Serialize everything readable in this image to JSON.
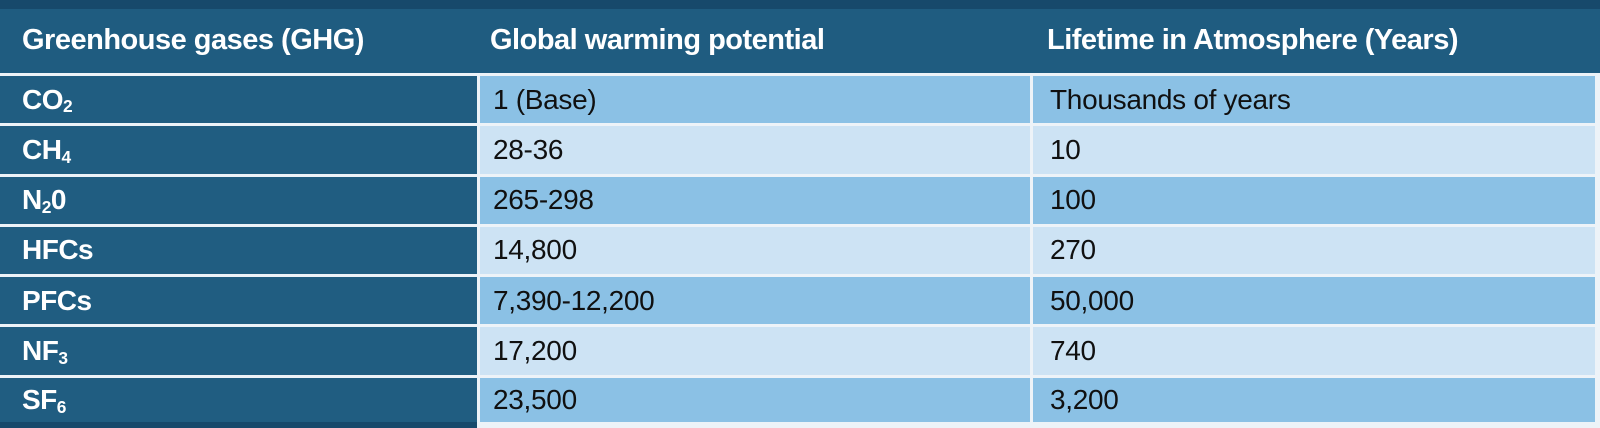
{
  "table": {
    "columns": [
      {
        "label": "Greenhouse gases (GHG)"
      },
      {
        "label": "Global warming potential"
      },
      {
        "label": "Lifetime in Atmosphere (Years)"
      }
    ],
    "rows": [
      {
        "gas": {
          "main": "CO",
          "sub": "2",
          "tail": ""
        },
        "gwp": "1 (Base)",
        "lifetime": "Thousands of years"
      },
      {
        "gas": {
          "main": "CH",
          "sub": "4",
          "tail": ""
        },
        "gwp": "28-36",
        "lifetime": "10"
      },
      {
        "gas": {
          "main": "N",
          "sub": "2",
          "tail": "0"
        },
        "gwp": "265-298",
        "lifetime": "100"
      },
      {
        "gas": {
          "main": "HFCs",
          "sub": "",
          "tail": ""
        },
        "gwp": "14,800",
        "lifetime": "270"
      },
      {
        "gas": {
          "main": "PFCs",
          "sub": "",
          "tail": ""
        },
        "gwp": "7,390-12,200",
        "lifetime": "50,000"
      },
      {
        "gas": {
          "main": "NF",
          "sub": "3",
          "tail": ""
        },
        "gwp": "17,200",
        "lifetime": "740"
      },
      {
        "gas": {
          "main": "SF",
          "sub": "6",
          "tail": ""
        },
        "gwp": "23,500",
        "lifetime": "3,200"
      }
    ],
    "colors": {
      "header_bg": "#1F5C80",
      "row_header_bg": "#205D81",
      "row_alt1_bg": "#8BC1E5",
      "row_alt2_bg": "#CDE3F4",
      "outer_border": "#17496B",
      "grid_line": "#EDF3F8",
      "header_text": "#FFFFFF",
      "data_text": "#101010"
    }
  },
  "chart_data": {
    "type": "table",
    "title": "",
    "columns": [
      "Greenhouse gases (GHG)",
      "Global warming potential",
      "Lifetime in Atmosphere (Years)"
    ],
    "rows": [
      [
        "CO2",
        "1 (Base)",
        "Thousands of years"
      ],
      [
        "CH4",
        "28-36",
        "10"
      ],
      [
        "N20",
        "265-298",
        "100"
      ],
      [
        "HFCs",
        "14,800",
        "270"
      ],
      [
        "PFCs",
        "7,390-12,200",
        "50,000"
      ],
      [
        "NF3",
        "17,200",
        "740"
      ],
      [
        "SF6",
        "23,500",
        "3,200"
      ]
    ],
    "layout_hints": {
      "header_style": "dark-blue, white bold text",
      "first_column_style": "dark-blue, white bold text, chemical subscripts",
      "body_style": "alternating medium (#8BC1E5) and light (#CDE3F4) blue rows, black text"
    }
  }
}
